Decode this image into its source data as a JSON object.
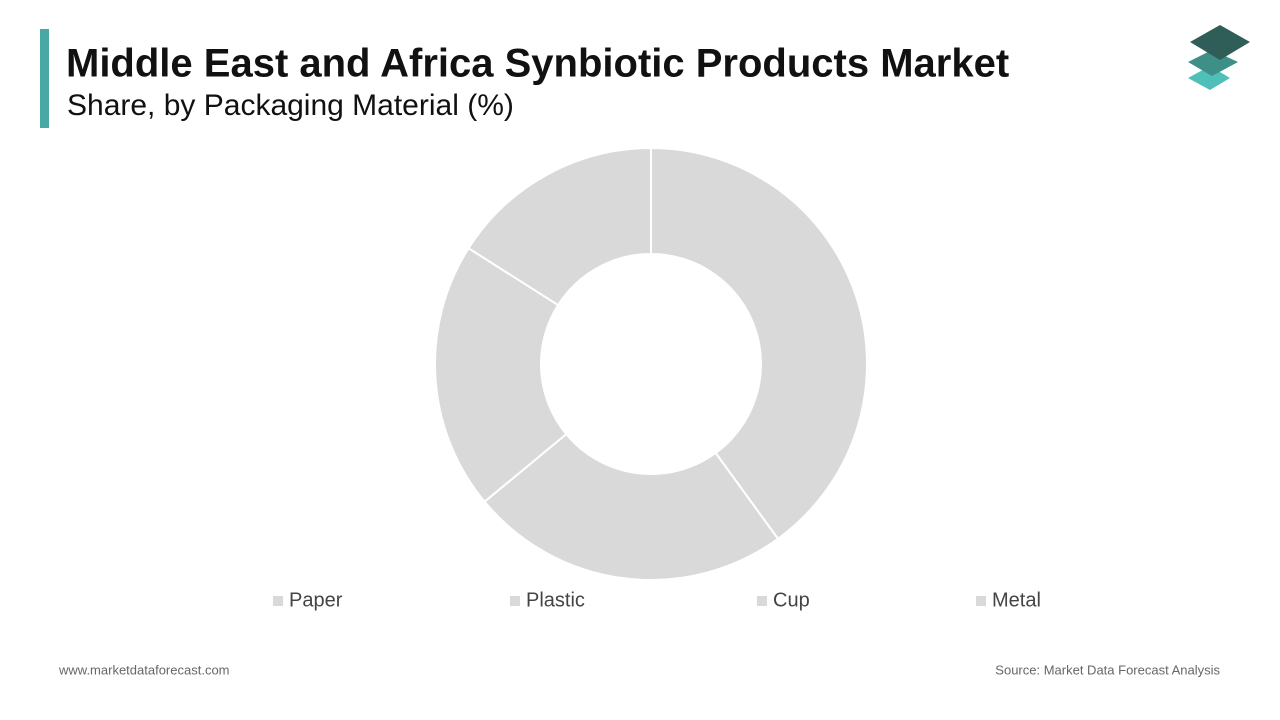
{
  "chart_data": {
    "type": "donut",
    "title": "Middle East and Africa Synbiotic Products Market",
    "subtitle": "Share, by Packaging Material (%)",
    "categories": [
      "Paper",
      "Plastic",
      "Cup",
      "Metal"
    ],
    "values": [
      40,
      24,
      20,
      16
    ],
    "colors": [
      "#d9d9d9",
      "#d9d9d9",
      "#d9d9d9",
      "#d9d9d9"
    ]
  },
  "footer": {
    "website": "www.marketdataforecast.com",
    "source": "Source: Market Data Forecast Analysis"
  }
}
